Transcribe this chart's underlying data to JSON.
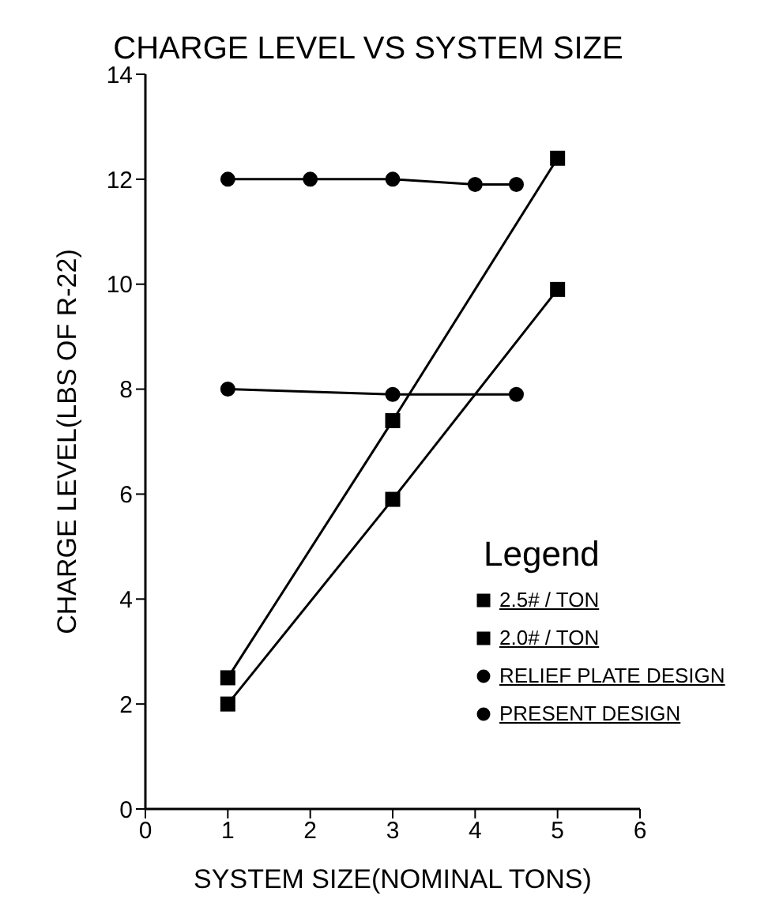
{
  "chart_data": {
    "type": "line",
    "title": "CHARGE LEVEL VS SYSTEM SIZE",
    "xlabel": "SYSTEM SIZE(NOMINAL TONS)",
    "ylabel": "CHARGE LEVEL(LBS OF R-22)",
    "xlim": [
      0,
      6
    ],
    "xticks": [
      0,
      1,
      2,
      3,
      4,
      5,
      6
    ],
    "ylim": [
      0,
      14
    ],
    "yticks": [
      0,
      2,
      4,
      6,
      8,
      10,
      12,
      14
    ],
    "grid": false,
    "legend": "bottom right",
    "legend_title": "Legend",
    "line_style": "solid",
    "series": [
      {
        "name": "2.5# / TON",
        "color": "#000000",
        "marker": "square",
        "x": [
          1,
          3,
          5
        ],
        "values": [
          2.5,
          7.4,
          12.4
        ]
      },
      {
        "name": "2.0# / TON",
        "color": "#000000",
        "marker": "square",
        "x": [
          1,
          3,
          5
        ],
        "values": [
          2.0,
          5.9,
          9.9
        ]
      },
      {
        "name": "RELIEF PLATE DESIGN",
        "color": "#000000",
        "marker": "circle",
        "x": [
          1,
          2,
          3,
          4,
          4.5
        ],
        "values": [
          12.0,
          12.0,
          12.0,
          11.9,
          11.9
        ]
      },
      {
        "name": "PRESENT DESIGN",
        "color": "#000000",
        "marker": "circle",
        "x": [
          1,
          3,
          4.5
        ],
        "values": [
          8.0,
          7.9,
          7.9
        ]
      }
    ]
  }
}
